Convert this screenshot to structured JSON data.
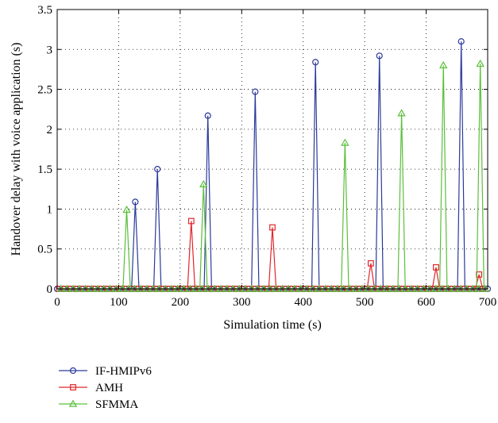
{
  "chart_data": {
    "type": "line",
    "xlabel": "Simulation time (s)",
    "ylabel": "Handover delay with voice application (s)",
    "xlim": [
      0,
      700
    ],
    "ylim": [
      0,
      3.5
    ],
    "xticks": [
      0,
      100,
      200,
      300,
      400,
      500,
      600,
      700
    ],
    "yticks": [
      0,
      0.5,
      1,
      1.5,
      2,
      2.5,
      3,
      3.5
    ],
    "xtick_labels": [
      "0",
      "100",
      "200",
      "300",
      "400",
      "500",
      "600",
      "700"
    ],
    "ytick_labels": [
      "0",
      "0.5",
      "1",
      "1.5",
      "2",
      "2.5",
      "3",
      "3.5"
    ],
    "grid": true,
    "grid_style": "dotted",
    "legend_placement": "below",
    "baseline_marker_step": 10,
    "series": [
      {
        "name": "IF-HMIPv6",
        "color": "#2b3a9a",
        "marker": "circle",
        "peaks": [
          {
            "x": 127,
            "y": 1.09,
            "w": 6
          },
          {
            "x": 163,
            "y": 1.5,
            "w": 6
          },
          {
            "x": 245,
            "y": 2.17,
            "w": 6
          },
          {
            "x": 322,
            "y": 2.47,
            "w": 6
          },
          {
            "x": 420,
            "y": 2.84,
            "w": 6
          },
          {
            "x": 524,
            "y": 2.92,
            "w": 6
          },
          {
            "x": 657,
            "y": 3.1,
            "w": 6
          }
        ]
      },
      {
        "name": "AMH",
        "color": "#e0262b",
        "marker": "square",
        "peaks": [
          {
            "x": 218,
            "y": 0.85,
            "w": 6
          },
          {
            "x": 350,
            "y": 0.77,
            "w": 6
          },
          {
            "x": 510,
            "y": 0.32,
            "w": 6
          },
          {
            "x": 616,
            "y": 0.27,
            "w": 6
          },
          {
            "x": 686,
            "y": 0.18,
            "w": 6
          }
        ]
      },
      {
        "name": "SFMMA",
        "color": "#5bbf3b",
        "marker": "triangle",
        "peaks": [
          {
            "x": 113,
            "y": 0.99,
            "w": 6
          },
          {
            "x": 238,
            "y": 1.31,
            "w": 6
          },
          {
            "x": 468,
            "y": 1.83,
            "w": 6
          },
          {
            "x": 560,
            "y": 2.2,
            "w": 6
          },
          {
            "x": 628,
            "y": 2.8,
            "w": 6
          },
          {
            "x": 688,
            "y": 2.82,
            "w": 6
          }
        ]
      }
    ]
  }
}
